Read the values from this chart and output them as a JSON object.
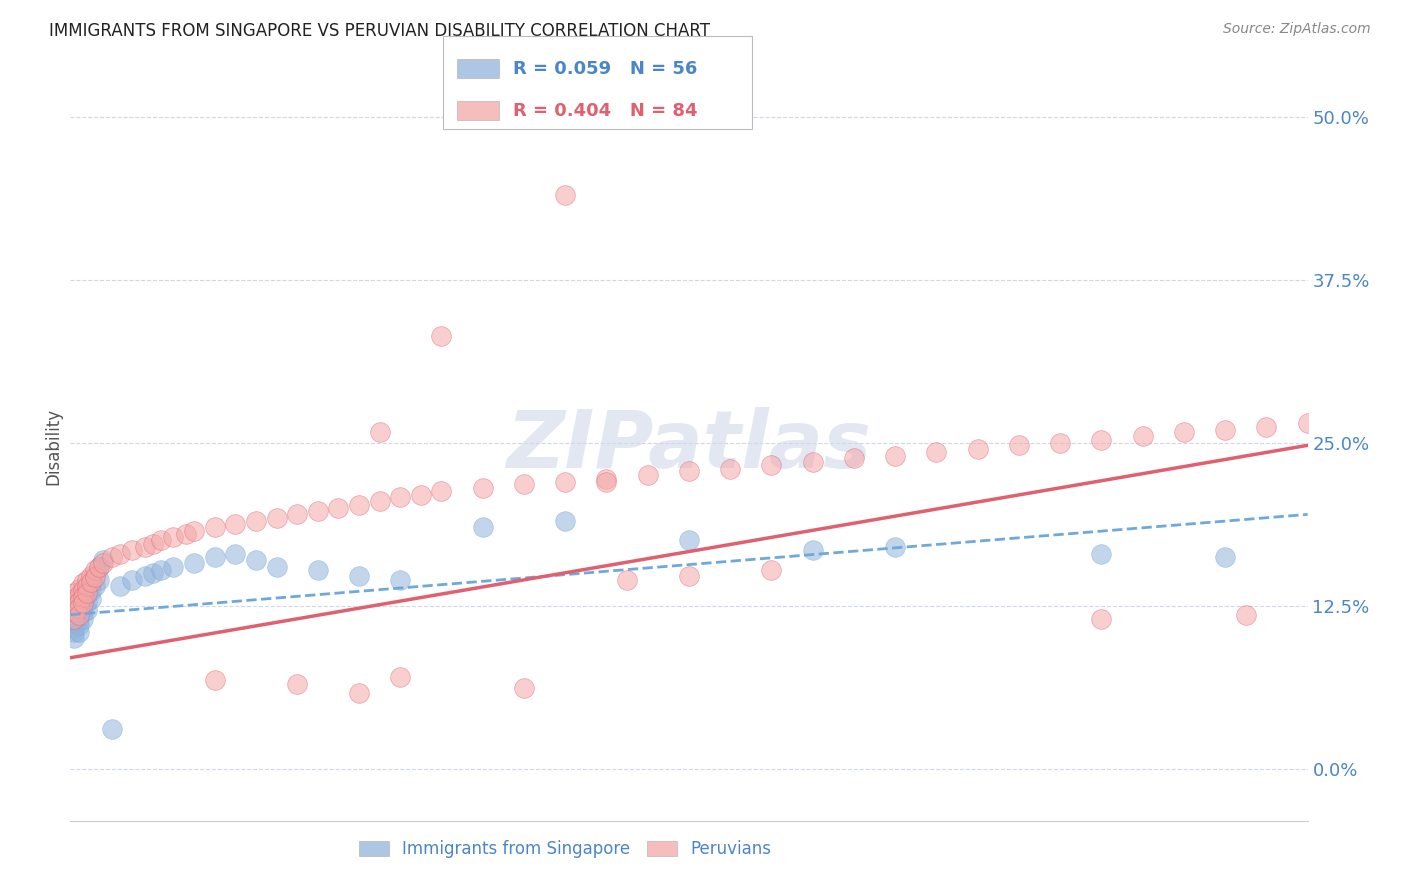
{
  "title": "IMMIGRANTS FROM SINGAPORE VS PERUVIAN DISABILITY CORRELATION CHART",
  "source": "Source: ZipAtlas.com",
  "ylabel": "Disability",
  "ytick_values": [
    0.0,
    0.125,
    0.25,
    0.375,
    0.5
  ],
  "ytick_labels": [
    "0.0%",
    "12.5%",
    "25.0%",
    "37.5%",
    "50.0%"
  ],
  "xmin": 0.0,
  "xmax": 0.3,
  "ymin": -0.04,
  "ymax": 0.535,
  "blue_color": "#92b4dc",
  "pink_color": "#f4a7a7",
  "blue_line_color": "#6fa8dc",
  "pink_line_color": "#e06070",
  "axis_label_color": "#4a86c8",
  "tick_color": "#4a86c8",
  "watermark_color": "#d0d8e8",
  "grid_color": "#d0d8e8",
  "background_color": "#ffffff",
  "blue_scatter_x": [
    0.001,
    0.001,
    0.001,
    0.001,
    0.001,
    0.001,
    0.001,
    0.001,
    0.001,
    0.001,
    0.002,
    0.002,
    0.002,
    0.002,
    0.002,
    0.002,
    0.002,
    0.002,
    0.003,
    0.003,
    0.003,
    0.003,
    0.003,
    0.004,
    0.004,
    0.004,
    0.004,
    0.005,
    0.005,
    0.005,
    0.006,
    0.006,
    0.007,
    0.007,
    0.008,
    0.012,
    0.015,
    0.018,
    0.02,
    0.022,
    0.025,
    0.03,
    0.035,
    0.04,
    0.045,
    0.05,
    0.06,
    0.07,
    0.08,
    0.1,
    0.12,
    0.15,
    0.18,
    0.2,
    0.25,
    0.28,
    0.01
  ],
  "blue_scatter_y": [
    0.13,
    0.128,
    0.125,
    0.122,
    0.118,
    0.115,
    0.112,
    0.108,
    0.105,
    0.1,
    0.132,
    0.128,
    0.125,
    0.122,
    0.118,
    0.115,
    0.11,
    0.105,
    0.135,
    0.13,
    0.125,
    0.12,
    0.115,
    0.138,
    0.133,
    0.128,
    0.122,
    0.142,
    0.136,
    0.13,
    0.148,
    0.14,
    0.155,
    0.145,
    0.16,
    0.14,
    0.145,
    0.148,
    0.15,
    0.152,
    0.155,
    0.158,
    0.162,
    0.165,
    0.16,
    0.155,
    0.152,
    0.148,
    0.145,
    0.185,
    0.19,
    0.175,
    0.168,
    0.17,
    0.165,
    0.162,
    0.03
  ],
  "pink_scatter_x": [
    0.001,
    0.001,
    0.001,
    0.001,
    0.001,
    0.002,
    0.002,
    0.002,
    0.002,
    0.002,
    0.003,
    0.003,
    0.003,
    0.003,
    0.004,
    0.004,
    0.004,
    0.005,
    0.005,
    0.006,
    0.006,
    0.007,
    0.008,
    0.01,
    0.012,
    0.015,
    0.018,
    0.02,
    0.022,
    0.025,
    0.028,
    0.03,
    0.035,
    0.04,
    0.045,
    0.05,
    0.055,
    0.06,
    0.065,
    0.07,
    0.075,
    0.08,
    0.085,
    0.09,
    0.1,
    0.11,
    0.12,
    0.13,
    0.14,
    0.15,
    0.16,
    0.17,
    0.18,
    0.19,
    0.2,
    0.21,
    0.22,
    0.23,
    0.24,
    0.25,
    0.26,
    0.27,
    0.28,
    0.29,
    0.3,
    0.15,
    0.17,
    0.135,
    0.035,
    0.055,
    0.25,
    0.285,
    0.13,
    0.075,
    0.12,
    0.09,
    0.11,
    0.07,
    0.08
  ],
  "pink_scatter_y": [
    0.135,
    0.13,
    0.125,
    0.12,
    0.115,
    0.138,
    0.133,
    0.128,
    0.123,
    0.118,
    0.142,
    0.137,
    0.132,
    0.127,
    0.145,
    0.14,
    0.135,
    0.148,
    0.143,
    0.152,
    0.147,
    0.155,
    0.158,
    0.162,
    0.165,
    0.168,
    0.17,
    0.172,
    0.175,
    0.178,
    0.18,
    0.182,
    0.185,
    0.188,
    0.19,
    0.192,
    0.195,
    0.198,
    0.2,
    0.202,
    0.205,
    0.208,
    0.21,
    0.213,
    0.215,
    0.218,
    0.22,
    0.222,
    0.225,
    0.228,
    0.23,
    0.233,
    0.235,
    0.238,
    0.24,
    0.243,
    0.245,
    0.248,
    0.25,
    0.252,
    0.255,
    0.258,
    0.26,
    0.262,
    0.265,
    0.148,
    0.152,
    0.145,
    0.068,
    0.065,
    0.115,
    0.118,
    0.22,
    0.258,
    0.44,
    0.332,
    0.062,
    0.058,
    0.07
  ],
  "blue_line_x": [
    0.0,
    0.3
  ],
  "blue_line_y": [
    0.118,
    0.195
  ],
  "pink_line_x": [
    0.0,
    0.3
  ],
  "pink_line_y": [
    0.085,
    0.248
  ]
}
